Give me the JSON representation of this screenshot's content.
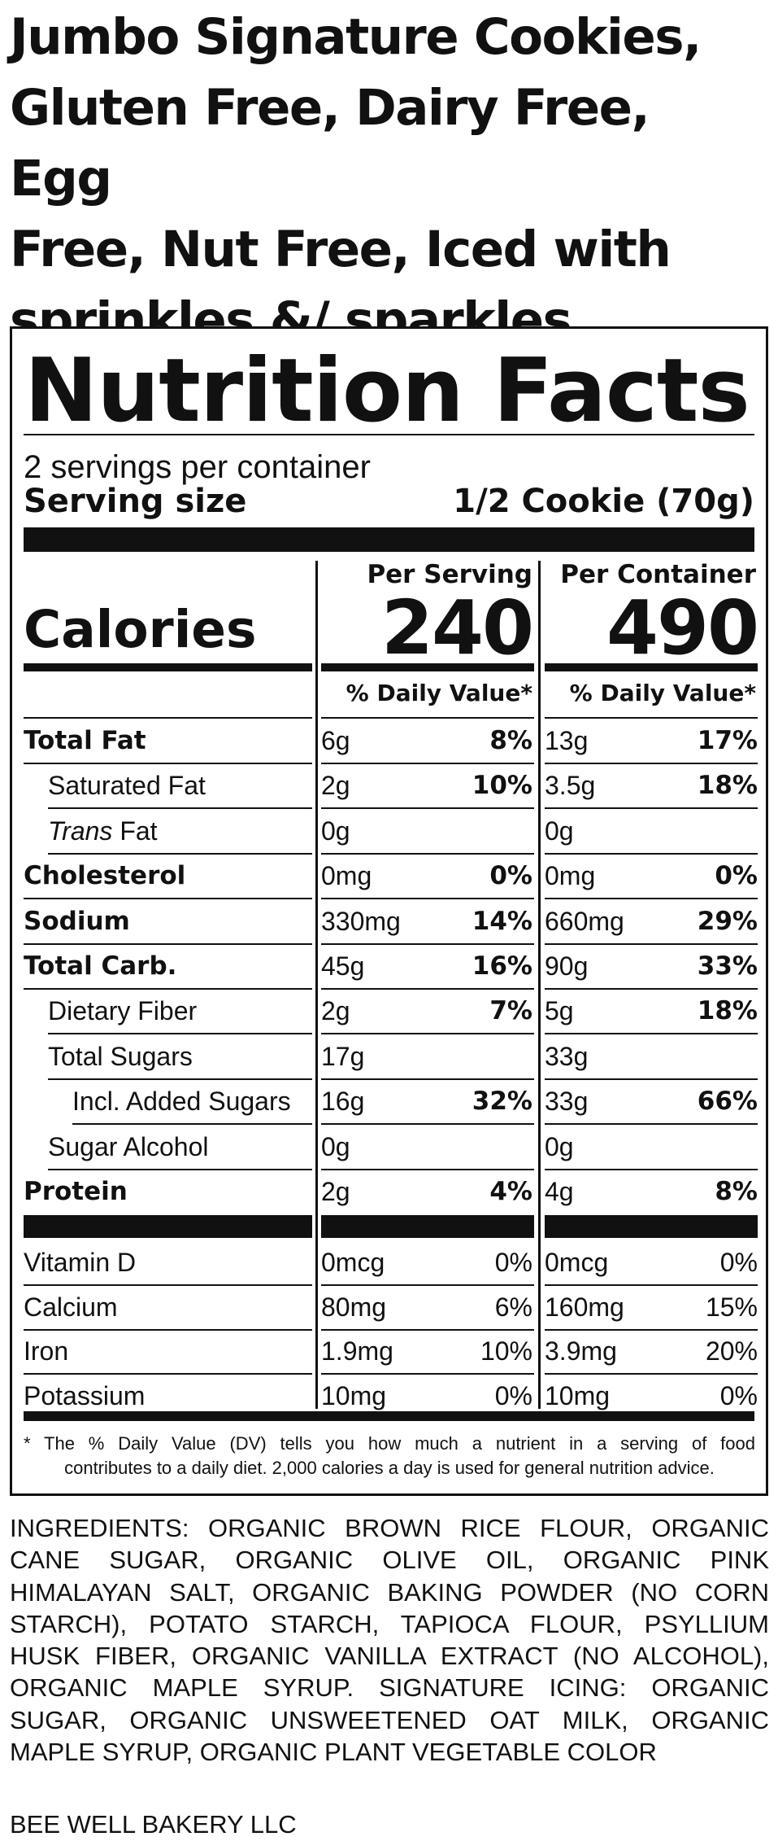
{
  "product_title_lines": [
    "Jumbo Signature Cookies,",
    "Gluten Free, Dairy Free, Egg",
    "Free, Nut Free, Iced with",
    "sprinkles &/ sparkles"
  ],
  "label": {
    "heading": "Nutrition Facts",
    "servings_per_container": "2 servings per container",
    "serving_size_label": "Serving size",
    "serving_size_value": "1/2 Cookie (70g)",
    "col_per_serving": "Per Serving",
    "col_per_container": "Per Container",
    "calories_label": "Calories",
    "calories_per_serving": "240",
    "calories_per_container": "490",
    "dv_header": "% Daily Value*",
    "nutrients": [
      {
        "name": "Total Fat",
        "s_amt": "6g",
        "s_pct": "8%",
        "c_amt": "13g",
        "c_pct": "17%"
      },
      {
        "name": "Saturated Fat",
        "s_amt": "2g",
        "s_pct": "10%",
        "c_amt": "3.5g",
        "c_pct": "18%"
      },
      {
        "name_italic": "Trans",
        "name": " Fat",
        "s_amt": "0g",
        "s_pct": "",
        "c_amt": "0g",
        "c_pct": ""
      },
      {
        "name": "Cholesterol",
        "s_amt": "0mg",
        "s_pct": "0%",
        "c_amt": "0mg",
        "c_pct": "0%"
      },
      {
        "name": "Sodium",
        "s_amt": "330mg",
        "s_pct": "14%",
        "c_amt": "660mg",
        "c_pct": "29%"
      },
      {
        "name": "Total Carb.",
        "s_amt": "45g",
        "s_pct": "16%",
        "c_amt": "90g",
        "c_pct": "33%"
      },
      {
        "name": "Dietary Fiber",
        "s_amt": "2g",
        "s_pct": "7%",
        "c_amt": "5g",
        "c_pct": "18%"
      },
      {
        "name": "Total Sugars",
        "s_amt": "17g",
        "s_pct": "",
        "c_amt": "33g",
        "c_pct": ""
      },
      {
        "name": "Incl. Added Sugars",
        "s_amt": "16g",
        "s_pct": "32%",
        "c_amt": "33g",
        "c_pct": "66%"
      },
      {
        "name": "Sugar Alcohol",
        "s_amt": "0g",
        "s_pct": "",
        "c_amt": "0g",
        "c_pct": ""
      },
      {
        "name": "Protein",
        "s_amt": "2g",
        "s_pct": "4%",
        "c_amt": "4g",
        "c_pct": "8%"
      }
    ],
    "vitamins": [
      {
        "name": "Vitamin D",
        "s_amt": "0mcg",
        "s_pct": "0%",
        "c_amt": "0mcg",
        "c_pct": "0%"
      },
      {
        "name": "Calcium",
        "s_amt": "80mg",
        "s_pct": "6%",
        "c_amt": "160mg",
        "c_pct": "15%"
      },
      {
        "name": "Iron",
        "s_amt": "1.9mg",
        "s_pct": "10%",
        "c_amt": "3.9mg",
        "c_pct": "20%"
      },
      {
        "name": "Potassium",
        "s_amt": "10mg",
        "s_pct": "0%",
        "c_amt": "10mg",
        "c_pct": "0%"
      }
    ],
    "footnote_line1": "* The % Daily Value (DV) tells you how much a nutrient in a serving of food",
    "footnote_line2": "contributes to a daily diet. 2,000 calories a day is used for general nutrition advice."
  },
  "ingredients_lines": [
    "INGREDIENTS: ORGANIC BROWN RICE FLOUR, ORGANIC",
    "CANE SUGAR, ORGANIC OLIVE OIL, ORGANIC PINK",
    "HIMALAYAN SALT, ORGANIC BAKING POWDER (NO CORN",
    "STARCH), POTATO STARCH, TAPIOCA FLOUR, PSYLLIUM",
    "HUSK FIBER, ORGANIC VANILLA EXTRACT (NO ALCOHOL),",
    "ORGANIC MAPLE SYRUP. SIGNATURE ICING: ORGANIC",
    "SUGAR, ORGANIC UNSWEETENED OAT MILK, ORGANIC",
    "MAPLE SYRUP, ORGANIC PLANT VEGETABLE COLOR"
  ],
  "maker": "BEE WELL BAKERY LLC"
}
